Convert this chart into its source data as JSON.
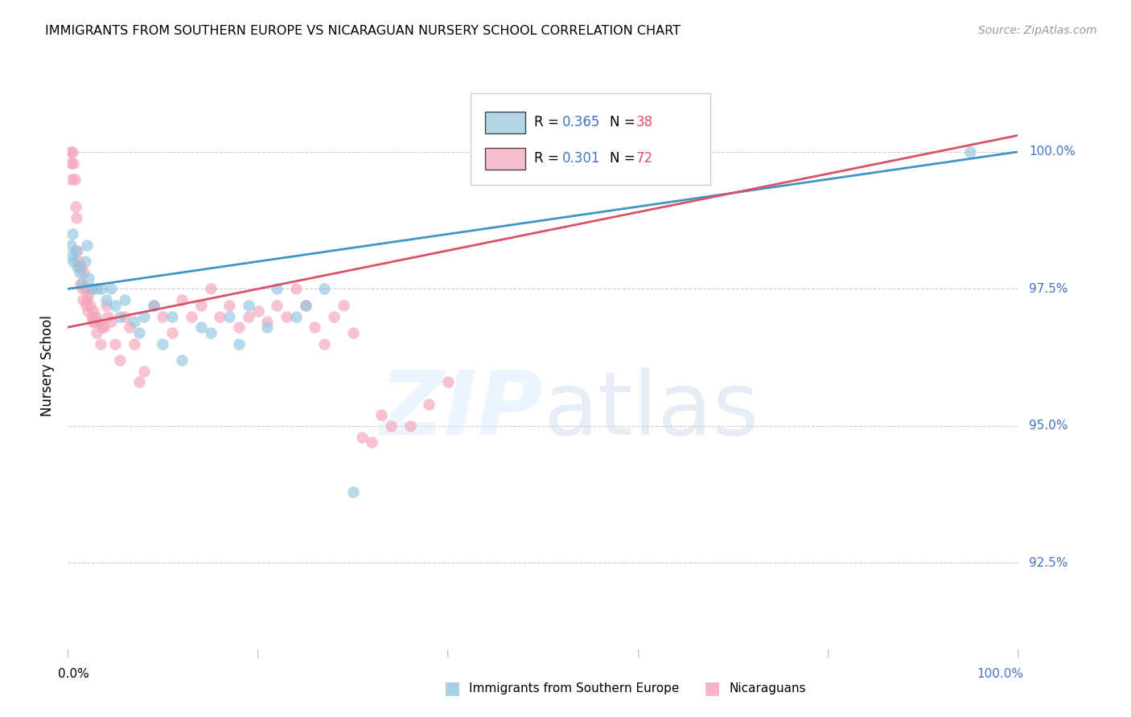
{
  "title": "IMMIGRANTS FROM SOUTHERN EUROPE VS NICARAGUAN NURSERY SCHOOL CORRELATION CHART",
  "source": "Source: ZipAtlas.com",
  "ylabel": "Nursery School",
  "legend1_R": 0.365,
  "legend1_N": 38,
  "legend2_R": 0.301,
  "legend2_N": 72,
  "blue_color": "#92c5de",
  "pink_color": "#f4a4b8",
  "blue_line_color": "#4393c3",
  "pink_line_color": "#d6536a",
  "ytick_labels": [
    "92.5%",
    "95.0%",
    "97.5%",
    "100.0%"
  ],
  "ytick_values": [
    92.5,
    95.0,
    97.5,
    100.0
  ],
  "xlim": [
    0.0,
    100.0
  ],
  "ylim": [
    91.0,
    101.2
  ],
  "blue_line_x0": 0.0,
  "blue_line_y0": 97.5,
  "blue_line_x1": 100.0,
  "blue_line_y1": 100.0,
  "pink_line_x0": 0.0,
  "pink_line_y0": 96.8,
  "pink_line_x1": 100.0,
  "pink_line_y1": 100.3,
  "blue_scatter_x": [
    0.3,
    0.4,
    0.5,
    0.6,
    0.8,
    1.0,
    1.2,
    1.5,
    1.8,
    2.0,
    2.2,
    2.5,
    3.0,
    3.5,
    4.0,
    4.5,
    5.0,
    5.5,
    6.0,
    7.0,
    7.5,
    8.0,
    9.0,
    10.0,
    11.0,
    12.0,
    14.0,
    15.0,
    17.0,
    18.0,
    19.0,
    21.0,
    22.0,
    24.0,
    25.0,
    27.0,
    30.0,
    95.0
  ],
  "blue_scatter_y": [
    98.3,
    98.1,
    98.5,
    98.0,
    98.2,
    97.9,
    97.8,
    97.6,
    98.0,
    98.3,
    97.7,
    97.5,
    97.5,
    97.5,
    97.3,
    97.5,
    97.2,
    97.0,
    97.3,
    96.9,
    96.7,
    97.0,
    97.2,
    96.5,
    97.0,
    96.2,
    96.8,
    96.7,
    97.0,
    96.5,
    97.2,
    96.8,
    97.5,
    97.0,
    97.2,
    97.5,
    93.8,
    100.0
  ],
  "pink_scatter_x": [
    0.2,
    0.3,
    0.4,
    0.5,
    0.6,
    0.7,
    0.8,
    0.9,
    1.0,
    1.1,
    1.2,
    1.3,
    1.4,
    1.5,
    1.6,
    1.7,
    1.8,
    1.9,
    2.0,
    2.1,
    2.2,
    2.3,
    2.4,
    2.5,
    2.6,
    2.7,
    2.8,
    2.9,
    3.0,
    3.2,
    3.4,
    3.6,
    3.8,
    4.0,
    4.2,
    4.5,
    5.0,
    5.5,
    6.0,
    6.5,
    7.0,
    7.5,
    8.0,
    9.0,
    10.0,
    11.0,
    12.0,
    13.0,
    14.0,
    15.0,
    16.0,
    17.0,
    18.0,
    19.0,
    20.0,
    21.0,
    22.0,
    23.0,
    24.0,
    25.0,
    26.0,
    27.0,
    28.0,
    29.0,
    30.0,
    31.0,
    32.0,
    33.0,
    34.0,
    36.0,
    38.0,
    40.0
  ],
  "pink_scatter_y": [
    100.0,
    99.8,
    99.5,
    100.0,
    99.8,
    99.5,
    99.0,
    98.8,
    98.2,
    98.0,
    97.9,
    97.6,
    97.9,
    97.5,
    97.3,
    97.8,
    97.5,
    97.2,
    97.3,
    97.1,
    97.4,
    97.2,
    97.5,
    97.0,
    96.9,
    97.1,
    96.9,
    97.0,
    96.7,
    96.9,
    96.5,
    96.8,
    96.8,
    97.2,
    97.0,
    96.9,
    96.5,
    96.2,
    97.0,
    96.8,
    96.5,
    95.8,
    96.0,
    97.2,
    97.0,
    96.7,
    97.3,
    97.0,
    97.2,
    97.5,
    97.0,
    97.2,
    96.8,
    97.0,
    97.1,
    96.9,
    97.2,
    97.0,
    97.5,
    97.2,
    96.8,
    96.5,
    97.0,
    97.2,
    96.7,
    94.8,
    94.7,
    95.2,
    95.0,
    95.0,
    95.4,
    95.8
  ]
}
